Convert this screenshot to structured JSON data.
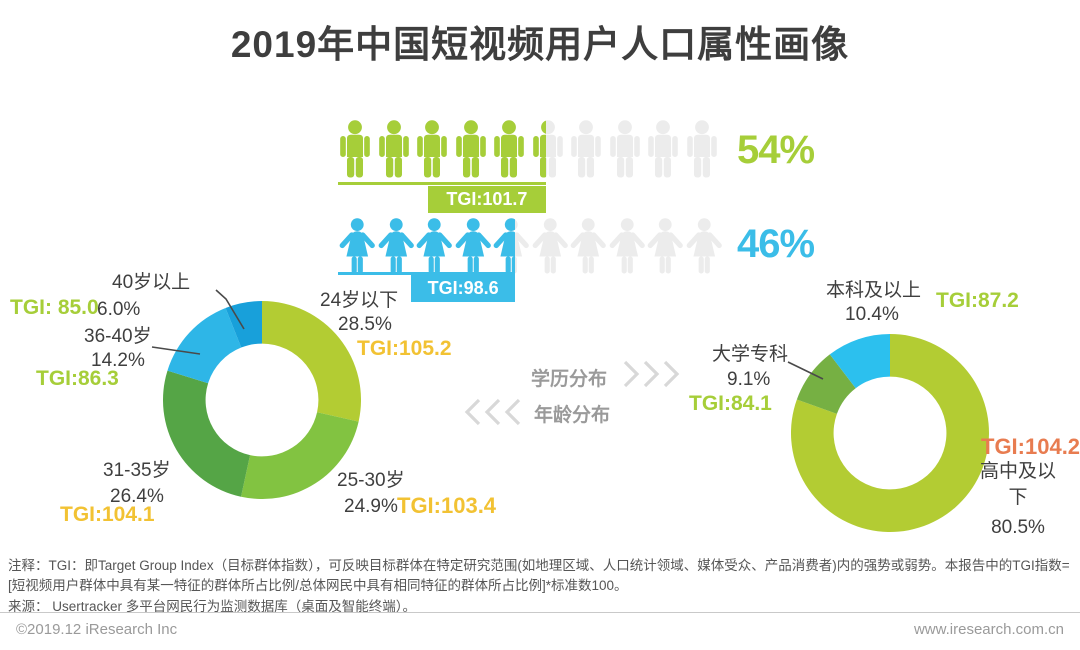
{
  "title": "2019年中国短视频用户人口属性画像",
  "gender": {
    "male": {
      "percent": 54,
      "percent_label": "54%",
      "tgi_label": "TGI:101.7",
      "color": "#a6ce39"
    },
    "female": {
      "percent": 46,
      "percent_label": "46%",
      "tgi_label": "TGI:98.6",
      "color": "#3bbde8"
    }
  },
  "chart_data": [
    {
      "type": "pie",
      "name": "年龄分布",
      "hole": 0.57,
      "start_angle": "12-o-clock-clockwise",
      "segments": [
        {
          "label": "24岁以下",
          "value": 28.5,
          "value_label": "28.5%",
          "tgi": 105.2,
          "tgi_label": "TGI:105.2",
          "color": "#b3cc33",
          "tgi_color": "#f2c233"
        },
        {
          "label": "25-30岁",
          "value": 24.9,
          "value_label": "24.9%",
          "tgi": 103.4,
          "tgi_label": "TGI:103.4",
          "color": "#82c341",
          "tgi_color": "#f2c233"
        },
        {
          "label": "31-35岁",
          "value": 26.4,
          "value_label": "26.4%",
          "tgi": 104.1,
          "tgi_label": "TGI:104.1",
          "color": "#55a546",
          "tgi_color": "#f2c233"
        },
        {
          "label": "36-40岁",
          "value": 14.2,
          "value_label": "14.2%",
          "tgi": 86.3,
          "tgi_label": "TGI:86.3",
          "color": "#2eb6e7",
          "tgi_color": "#a6ce39"
        },
        {
          "label": "40岁以上",
          "value": 6.0,
          "value_label": "6.0%",
          "tgi": 85.0,
          "tgi_label": "TGI: 85.0",
          "color": "#18a0da",
          "tgi_color": "#a6ce39"
        }
      ]
    },
    {
      "type": "pie",
      "name": "学历分布",
      "hole": 0.57,
      "start_angle": "12-o-clock-clockwise",
      "segments": [
        {
          "label": "高中及以下",
          "value": 80.5,
          "value_label": "80.5%",
          "tgi": 104.2,
          "tgi_label": "TGI:104.2",
          "color": "#b3cc33",
          "tgi_color": "#e87c50"
        },
        {
          "label": "大学专科",
          "value": 9.1,
          "value_label": "9.1%",
          "tgi": 84.1,
          "tgi_label": "TGI:84.1",
          "color": "#76b043",
          "tgi_color": "#a6ce39"
        },
        {
          "label": "本科及以上",
          "value": 10.4,
          "value_label": "10.4%",
          "tgi": 87.2,
          "tgi_label": "TGI:87.2",
          "color": "#2cc0ee",
          "tgi_color": "#a6ce39"
        }
      ]
    }
  ],
  "notes": {
    "note": "注释：TGI：即Target Group Index（目标群体指数），可反映目标群体在特定研究范围(如地理区域、人口统计领域、媒体受众、产品消费者)内的强势或弱势。本报告中的TGI指数= [短视频用户群体中具有某一特征的群体所占比例/总体网民中具有相同特征的群体所占比例]*标准数100。",
    "source": "来源： Usertracker 多平台网民行为监测数据库（桌面及智能终端）。"
  },
  "footer": {
    "copyright": "©2019.12 iResearch Inc",
    "website": "www.iresearch.com.cn"
  }
}
